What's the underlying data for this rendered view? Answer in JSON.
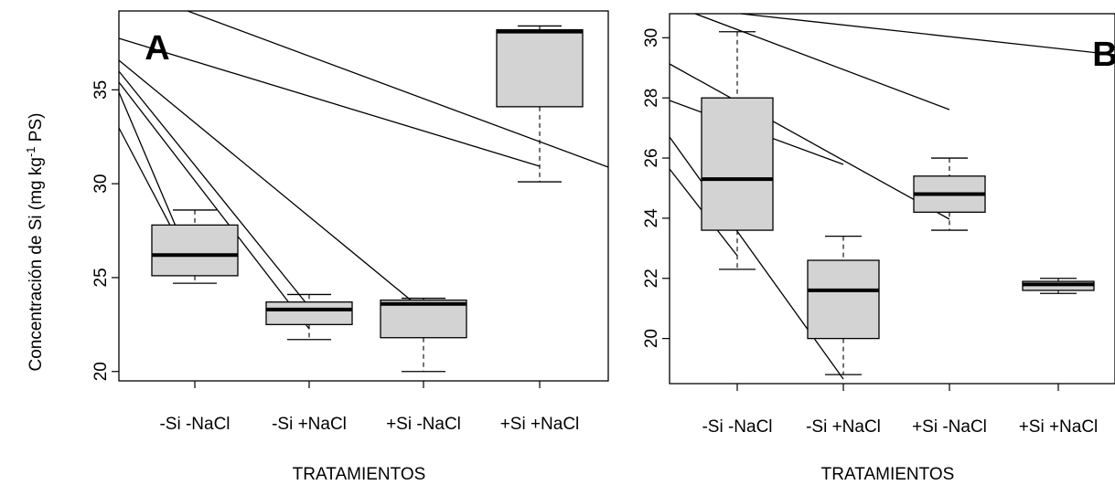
{
  "ylabel": "Concentración de Si (mg kg",
  "ylabel_sup": "-1",
  "ylabel_end": " PS)",
  "chart_data": [
    {
      "type": "box",
      "panel": "A",
      "xlabel": "TRATAMIENTOS",
      "ylim": [
        19.5,
        39.2
      ],
      "yticks": [
        20,
        25,
        30,
        35
      ],
      "categories": [
        "-Si -NaCl",
        "-Si +NaCl",
        "+Si -NaCl",
        "+Si +NaCl"
      ],
      "boxes": [
        {
          "min": 24.7,
          "q1": 25.1,
          "median": 26.2,
          "q3": 27.8,
          "max": 28.6
        },
        {
          "min": 21.7,
          "q1": 22.5,
          "median": 23.3,
          "q3": 23.7,
          "max": 24.1
        },
        {
          "min": 20.0,
          "q1": 21.8,
          "median": 23.6,
          "q3": 23.8,
          "max": 23.9
        },
        {
          "min": 30.1,
          "q1": 34.1,
          "median": 38.1,
          "q3": 38.2,
          "max": 38.4
        }
      ],
      "background": "#d3d3d3",
      "fill": "#d3d3d3"
    },
    {
      "type": "box",
      "panel": "B",
      "xlabel": "TRATAMIENTOS",
      "ylim": [
        18.5,
        30.8
      ],
      "yticks": [
        20,
        22,
        24,
        26,
        28,
        30
      ],
      "categories": [
        "-Si -NaCl",
        "-Si +NaCl",
        "+Si -NaCl",
        "+Si +NaCl"
      ],
      "boxes": [
        {
          "min": 22.3,
          "q1": 23.6,
          "median": 25.3,
          "q3": 28.0,
          "max": 30.2
        },
        {
          "min": 18.8,
          "q1": 20.0,
          "median": 21.6,
          "q3": 22.6,
          "max": 23.4
        },
        {
          "min": 23.6,
          "q1": 24.2,
          "median": 24.8,
          "q3": 25.4,
          "max": 26.0
        },
        {
          "min": 21.5,
          "q1": 21.6,
          "median": 21.8,
          "q3": 21.9,
          "max": 22.0
        }
      ],
      "fill": "#d3d3d3"
    }
  ]
}
